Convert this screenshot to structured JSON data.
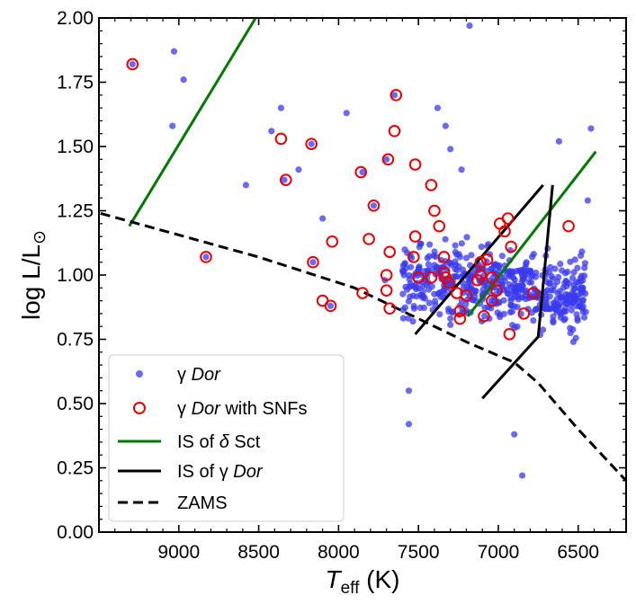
{
  "chart_data": {
    "type": "scatter",
    "xlabel": {
      "main": "T",
      "sub": "eff",
      "unit": " (K)"
    },
    "ylabel": {
      "main": "log  L/L",
      "sub": "⊙"
    },
    "xlim": [
      9500,
      6200
    ],
    "ylim": [
      0.0,
      2.0
    ],
    "x_reversed": true,
    "x_ticks": [
      9000,
      8500,
      8000,
      7500,
      7000,
      6500
    ],
    "y_ticks": [
      0.0,
      0.25,
      0.5,
      0.75,
      1.0,
      1.25,
      1.5,
      1.75,
      2.0
    ],
    "y_tick_labels": [
      "0.00",
      "0.25",
      "0.50",
      "0.75",
      "1.00",
      "1.25",
      "1.50",
      "1.75",
      "2.00"
    ],
    "legend_placement": "lower-left",
    "colors": {
      "gdor": "#3a3aee",
      "snf": "#ee0000",
      "delta_sct": "#007a00",
      "gdor_is": "#000000",
      "zams": "#000000"
    },
    "series": [
      {
        "name": "γ Dor",
        "legend_parts": [
          {
            "t": "γ ",
            "i": false
          },
          {
            "t": "Dor",
            "i": true
          }
        ],
        "kind": "scatter",
        "points": [
          [
            9290,
            1.82
          ],
          [
            9030,
            1.87
          ],
          [
            8970,
            1.76
          ],
          [
            9040,
            1.58
          ],
          [
            8830,
            1.07
          ],
          [
            8580,
            1.35
          ],
          [
            8360,
            1.65
          ],
          [
            8420,
            1.56
          ],
          [
            8340,
            1.37
          ],
          [
            8250,
            1.41
          ],
          [
            8170,
            1.51
          ],
          [
            8160,
            1.05
          ],
          [
            8100,
            1.22
          ],
          [
            8050,
            0.88
          ],
          [
            7950,
            1.63
          ],
          [
            7850,
            1.4
          ],
          [
            7780,
            1.27
          ],
          [
            7710,
            0.98
          ],
          [
            7700,
            1.45
          ],
          [
            7650,
            1.7
          ],
          [
            7560,
            0.55
          ],
          [
            7560,
            0.42
          ],
          [
            7380,
            1.65
          ],
          [
            7330,
            1.58
          ],
          [
            7300,
            1.49
          ],
          [
            7230,
            1.41
          ],
          [
            7180,
            1.97
          ],
          [
            6850,
            0.22
          ],
          [
            6900,
            0.38
          ],
          [
            6420,
            1.57
          ],
          [
            6440,
            1.29
          ],
          [
            6530,
            0.74
          ],
          [
            6620,
            1.52
          ]
        ],
        "generated_cloud": {
          "count": 520,
          "x_range": [
            7600,
            6450
          ],
          "y_range": [
            0.6,
            1.35
          ],
          "y_center": 0.93
        }
      },
      {
        "name": "γ Dor with SNFs",
        "legend_parts": [
          {
            "t": "γ ",
            "i": false
          },
          {
            "t": "Dor",
            "i": true
          },
          {
            "t": " with SNFs",
            "i": false
          }
        ],
        "kind": "ring",
        "points": [
          [
            9290,
            1.82
          ],
          [
            8830,
            1.07
          ],
          [
            8360,
            1.53
          ],
          [
            8330,
            1.37
          ],
          [
            8170,
            1.51
          ],
          [
            8160,
            1.05
          ],
          [
            8040,
            1.13
          ],
          [
            8100,
            0.9
          ],
          [
            8050,
            0.88
          ],
          [
            7860,
            1.4
          ],
          [
            7850,
            0.93
          ],
          [
            7810,
            1.14
          ],
          [
            7780,
            1.27
          ],
          [
            7680,
            1.09
          ],
          [
            7690,
            1.45
          ],
          [
            7650,
            1.56
          ],
          [
            7640,
            1.7
          ],
          [
            7700,
            1.0
          ],
          [
            7700,
            0.94
          ],
          [
            7680,
            0.87
          ],
          [
            7520,
            1.43
          ],
          [
            7520,
            1.15
          ],
          [
            7530,
            1.07
          ],
          [
            7500,
            0.99
          ],
          [
            7420,
            1.35
          ],
          [
            7400,
            1.25
          ],
          [
            7370,
            1.19
          ],
          [
            7340,
            1.07
          ],
          [
            7340,
            1.01
          ],
          [
            7330,
            0.99
          ],
          [
            7420,
            0.99
          ],
          [
            7310,
            0.97
          ],
          [
            7260,
            0.93
          ],
          [
            7240,
            0.86
          ],
          [
            7240,
            0.83
          ],
          [
            7200,
            0.92
          ],
          [
            7130,
            0.98
          ],
          [
            7110,
            1.0
          ],
          [
            7110,
            1.05
          ],
          [
            7090,
            0.84
          ],
          [
            7070,
            1.06
          ],
          [
            7040,
            0.99
          ],
          [
            7040,
            0.9
          ],
          [
            7010,
            0.94
          ],
          [
            6990,
            1.2
          ],
          [
            6960,
            1.17
          ],
          [
            6940,
            1.22
          ],
          [
            6920,
            1.11
          ],
          [
            6930,
            0.77
          ],
          [
            6840,
            0.85
          ],
          [
            6780,
            0.93
          ],
          [
            6560,
            1.19
          ]
        ]
      },
      {
        "name": "IS of δ Sct",
        "legend_parts": [
          {
            "t": "IS of ",
            "i": false
          },
          {
            "t": "δ",
            "i": true
          },
          {
            "t": " Sct",
            "i": false
          }
        ],
        "kind": "line",
        "segments": [
          [
            [
              9310,
              1.19
            ],
            [
              8490,
              2.03
            ]
          ],
          [
            [
              7190,
              0.84
            ],
            [
              6390,
              1.48
            ]
          ]
        ]
      },
      {
        "name": "IS of γ Dor",
        "legend_parts": [
          {
            "t": "IS of ",
            "i": false
          },
          {
            "t": "γ ",
            "i": false
          },
          {
            "t": "Dor",
            "i": true
          }
        ],
        "kind": "line",
        "segments": [
          [
            [
              7520,
              0.77
            ],
            [
              6720,
              1.35
            ]
          ],
          [
            [
              7100,
              0.52
            ],
            [
              6750,
              0.76
            ],
            [
              6660,
              1.35
            ]
          ]
        ]
      },
      {
        "name": "ZAMS",
        "legend_parts": [
          {
            "t": "ZAMS",
            "i": false
          }
        ],
        "kind": "dashed",
        "segments": [
          [
            [
              9490,
              1.24
            ],
            [
              8500,
              1.07
            ],
            [
              7900,
              0.95
            ],
            [
              7500,
              0.83
            ],
            [
              7200,
              0.74
            ],
            [
              6900,
              0.66
            ],
            [
              6750,
              0.58
            ],
            [
              6500,
              0.4
            ],
            [
              6200,
              0.2
            ]
          ]
        ]
      }
    ]
  }
}
